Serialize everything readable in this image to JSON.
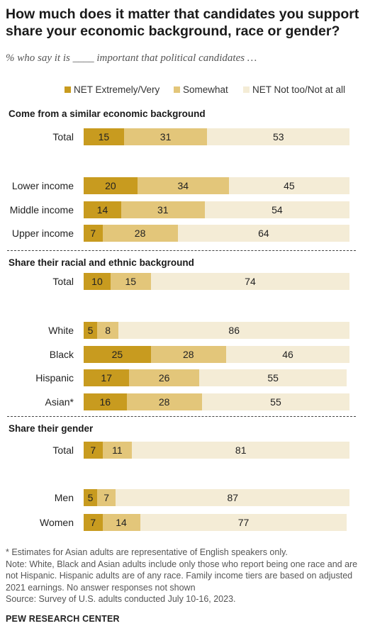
{
  "title": "How much does it matter that candidates you support share your economic background, race or gender?",
  "subtitle": "% who say it is ____ important that political candidates …",
  "colors": {
    "net_extremely_very": "#C89B1F",
    "somewhat": "#E3C67A",
    "net_not_too": "#F4ECD6"
  },
  "chart_data": {
    "type": "bar",
    "orientation": "horizontal",
    "stacked": true,
    "series_names": [
      "NET Extremely/Very",
      "Somewhat",
      "NET Not too/Not at all"
    ],
    "legend_position": "top",
    "sections": [
      {
        "title": "Come from a similar economic background",
        "rows": [
          {
            "label": "Total",
            "values": [
              15,
              31,
              53
            ]
          },
          {
            "label": "Lower income",
            "values": [
              20,
              34,
              45
            ]
          },
          {
            "label": "Middle income",
            "values": [
              14,
              31,
              54
            ]
          },
          {
            "label": "Upper income",
            "values": [
              7,
              28,
              64
            ]
          }
        ]
      },
      {
        "title": "Share their racial and ethnic background",
        "rows": [
          {
            "label": "Total",
            "values": [
              10,
              15,
              74
            ]
          },
          {
            "label": "White",
            "values": [
              5,
              8,
              86
            ]
          },
          {
            "label": "Black",
            "values": [
              25,
              28,
              46
            ]
          },
          {
            "label": "Hispanic",
            "values": [
              17,
              26,
              55
            ]
          },
          {
            "label": "Asian*",
            "values": [
              16,
              28,
              55
            ]
          }
        ]
      },
      {
        "title": "Share their gender",
        "rows": [
          {
            "label": "Total",
            "values": [
              7,
              11,
              81
            ]
          },
          {
            "label": "Men",
            "values": [
              5,
              7,
              87
            ]
          },
          {
            "label": "Women",
            "values": [
              7,
              14,
              77
            ]
          }
        ]
      }
    ]
  },
  "notes": [
    "* Estimates for Asian adults are representative of English speakers only.",
    "Note: White, Black and Asian adults include only those who report being one race and are not Hispanic. Hispanic adults are of any race. Family income tiers are based on adjusted 2021 earnings. No answer responses not shown",
    "Source: Survey of U.S. adults conducted July 10-16, 2023."
  ],
  "brand": "PEW RESEARCH CENTER"
}
